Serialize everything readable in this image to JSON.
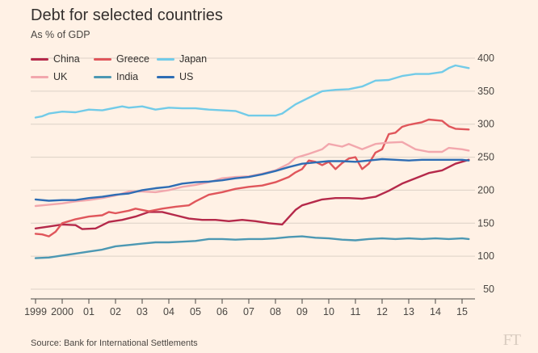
{
  "title": "Debt for selected countries",
  "subtitle": "As % of GDP",
  "source": "Source: Bank for International Settlements",
  "logo_text": "FT",
  "chart_data": {
    "type": "line",
    "title": "Debt for selected countries",
    "subtitle": "As % of GDP",
    "ylim": [
      50,
      400
    ],
    "yticks": [
      50,
      100,
      150,
      200,
      250,
      300,
      350,
      400
    ],
    "xlim": [
      1998.75,
      2015.75
    ],
    "xticks": [
      {
        "x": 1999,
        "label": "1999"
      },
      {
        "x": 2000,
        "label": "2000"
      },
      {
        "x": 2001,
        "label": "01"
      },
      {
        "x": 2002,
        "label": "02"
      },
      {
        "x": 2003,
        "label": "03"
      },
      {
        "x": 2004,
        "label": "04"
      },
      {
        "x": 2005,
        "label": "05"
      },
      {
        "x": 2006,
        "label": "06"
      },
      {
        "x": 2007,
        "label": "07"
      },
      {
        "x": 2008,
        "label": "08"
      },
      {
        "x": 2009,
        "label": "09"
      },
      {
        "x": 2010,
        "label": "10"
      },
      {
        "x": 2011,
        "label": "11"
      },
      {
        "x": 2012,
        "label": "12"
      },
      {
        "x": 2013,
        "label": "13"
      },
      {
        "x": 2014,
        "label": "14"
      },
      {
        "x": 2015,
        "label": "15"
      }
    ],
    "grid": true,
    "legend_position": "top-left",
    "series": [
      {
        "name": "China",
        "color": "#b5294a",
        "points": [
          [
            1999.0,
            142
          ],
          [
            1999.5,
            145
          ],
          [
            2000.0,
            148
          ],
          [
            2000.5,
            147
          ],
          [
            2000.75,
            141
          ],
          [
            2001.25,
            142
          ],
          [
            2001.75,
            152
          ],
          [
            2002.25,
            155
          ],
          [
            2002.75,
            160
          ],
          [
            2003.25,
            167
          ],
          [
            2003.75,
            167
          ],
          [
            2004.25,
            162
          ],
          [
            2004.75,
            157
          ],
          [
            2005.25,
            155
          ],
          [
            2005.75,
            155
          ],
          [
            2006.25,
            153
          ],
          [
            2006.75,
            155
          ],
          [
            2007.25,
            153
          ],
          [
            2007.75,
            150
          ],
          [
            2008.25,
            148
          ],
          [
            2008.75,
            170
          ],
          [
            2009.0,
            177
          ],
          [
            2009.5,
            183
          ],
          [
            2009.75,
            186
          ],
          [
            2010.25,
            188
          ],
          [
            2010.75,
            188
          ],
          [
            2011.25,
            187
          ],
          [
            2011.75,
            190
          ],
          [
            2012.25,
            199
          ],
          [
            2012.75,
            210
          ],
          [
            2013.25,
            218
          ],
          [
            2013.75,
            226
          ],
          [
            2014.25,
            230
          ],
          [
            2014.75,
            240
          ],
          [
            2015.25,
            246
          ]
        ]
      },
      {
        "name": "Greece",
        "color": "#e0565b",
        "points": [
          [
            1999.0,
            134
          ],
          [
            1999.25,
            133
          ],
          [
            1999.5,
            130
          ],
          [
            1999.75,
            137
          ],
          [
            2000.0,
            150
          ],
          [
            2000.5,
            156
          ],
          [
            2001.0,
            160
          ],
          [
            2001.5,
            162
          ],
          [
            2001.75,
            167
          ],
          [
            2002.0,
            165
          ],
          [
            2002.5,
            169
          ],
          [
            2002.75,
            172
          ],
          [
            2003.25,
            168
          ],
          [
            2003.75,
            172
          ],
          [
            2004.25,
            175
          ],
          [
            2004.75,
            177
          ],
          [
            2005.0,
            183
          ],
          [
            2005.5,
            193
          ],
          [
            2006.0,
            197
          ],
          [
            2006.5,
            202
          ],
          [
            2007.0,
            205
          ],
          [
            2007.5,
            207
          ],
          [
            2008.0,
            212
          ],
          [
            2008.5,
            220
          ],
          [
            2008.75,
            227
          ],
          [
            2009.0,
            232
          ],
          [
            2009.25,
            245
          ],
          [
            2009.5,
            243
          ],
          [
            2009.75,
            238
          ],
          [
            2010.0,
            243
          ],
          [
            2010.25,
            232
          ],
          [
            2010.5,
            241
          ],
          [
            2010.75,
            248
          ],
          [
            2011.0,
            250
          ],
          [
            2011.25,
            232
          ],
          [
            2011.5,
            240
          ],
          [
            2011.75,
            257
          ],
          [
            2012.0,
            262
          ],
          [
            2012.25,
            285
          ],
          [
            2012.5,
            287
          ],
          [
            2012.75,
            296
          ],
          [
            2013.0,
            299
          ],
          [
            2013.5,
            303
          ],
          [
            2013.75,
            307
          ],
          [
            2014.25,
            305
          ],
          [
            2014.5,
            297
          ],
          [
            2014.75,
            293
          ],
          [
            2015.25,
            292
          ]
        ]
      },
      {
        "name": "Japan",
        "color": "#72cbe8",
        "points": [
          [
            1999.0,
            310
          ],
          [
            1999.25,
            312
          ],
          [
            1999.5,
            316
          ],
          [
            2000.0,
            319
          ],
          [
            2000.5,
            318
          ],
          [
            2001.0,
            322
          ],
          [
            2001.5,
            321
          ],
          [
            2002.0,
            325
          ],
          [
            2002.25,
            327
          ],
          [
            2002.5,
            325
          ],
          [
            2003.0,
            327
          ],
          [
            2003.5,
            322
          ],
          [
            2004.0,
            325
          ],
          [
            2004.5,
            324
          ],
          [
            2005.0,
            324
          ],
          [
            2005.5,
            322
          ],
          [
            2006.0,
            321
          ],
          [
            2006.5,
            320
          ],
          [
            2007.0,
            313
          ],
          [
            2007.5,
            313
          ],
          [
            2008.0,
            313
          ],
          [
            2008.25,
            316
          ],
          [
            2008.75,
            330
          ],
          [
            2009.25,
            340
          ],
          [
            2009.75,
            350
          ],
          [
            2010.25,
            352
          ],
          [
            2010.75,
            353
          ],
          [
            2011.25,
            357
          ],
          [
            2011.75,
            366
          ],
          [
            2012.25,
            367
          ],
          [
            2012.75,
            373
          ],
          [
            2013.25,
            376
          ],
          [
            2013.75,
            376
          ],
          [
            2014.25,
            379
          ],
          [
            2014.5,
            385
          ],
          [
            2014.75,
            389
          ],
          [
            2015.25,
            385
          ]
        ]
      },
      {
        "name": "UK",
        "color": "#f2a7ad",
        "points": [
          [
            1999.0,
            176
          ],
          [
            1999.5,
            178
          ],
          [
            2000.0,
            180
          ],
          [
            2000.5,
            183
          ],
          [
            2001.0,
            185
          ],
          [
            2001.5,
            188
          ],
          [
            2002.0,
            192
          ],
          [
            2002.5,
            198
          ],
          [
            2003.0,
            198
          ],
          [
            2003.5,
            197
          ],
          [
            2004.0,
            200
          ],
          [
            2004.5,
            205
          ],
          [
            2005.0,
            208
          ],
          [
            2005.5,
            212
          ],
          [
            2006.0,
            218
          ],
          [
            2006.5,
            220
          ],
          [
            2007.0,
            221
          ],
          [
            2007.5,
            225
          ],
          [
            2008.0,
            230
          ],
          [
            2008.5,
            240
          ],
          [
            2008.75,
            249
          ],
          [
            2009.25,
            255
          ],
          [
            2009.75,
            262
          ],
          [
            2010.0,
            270
          ],
          [
            2010.5,
            266
          ],
          [
            2010.75,
            270
          ],
          [
            2011.25,
            262
          ],
          [
            2011.75,
            270
          ],
          [
            2012.25,
            272
          ],
          [
            2012.75,
            273
          ],
          [
            2013.25,
            262
          ],
          [
            2013.75,
            258
          ],
          [
            2014.25,
            258
          ],
          [
            2014.5,
            264
          ],
          [
            2015.0,
            262
          ],
          [
            2015.25,
            260
          ]
        ]
      },
      {
        "name": "India",
        "color": "#4c98b3",
        "points": [
          [
            1999.0,
            97
          ],
          [
            1999.5,
            98
          ],
          [
            2000.0,
            101
          ],
          [
            2000.5,
            104
          ],
          [
            2001.0,
            107
          ],
          [
            2001.5,
            110
          ],
          [
            2002.0,
            115
          ],
          [
            2002.5,
            117
          ],
          [
            2003.0,
            119
          ],
          [
            2003.5,
            121
          ],
          [
            2004.0,
            121
          ],
          [
            2004.5,
            122
          ],
          [
            2005.0,
            123
          ],
          [
            2005.5,
            126
          ],
          [
            2006.0,
            126
          ],
          [
            2006.5,
            125
          ],
          [
            2007.0,
            126
          ],
          [
            2007.5,
            126
          ],
          [
            2008.0,
            127
          ],
          [
            2008.5,
            129
          ],
          [
            2009.0,
            130
          ],
          [
            2009.5,
            128
          ],
          [
            2010.0,
            127
          ],
          [
            2010.5,
            125
          ],
          [
            2011.0,
            124
          ],
          [
            2011.5,
            126
          ],
          [
            2012.0,
            127
          ],
          [
            2012.5,
            126
          ],
          [
            2013.0,
            127
          ],
          [
            2013.5,
            126
          ],
          [
            2014.0,
            127
          ],
          [
            2014.5,
            126
          ],
          [
            2015.0,
            127
          ],
          [
            2015.25,
            126
          ]
        ]
      },
      {
        "name": "US",
        "color": "#2e6db4",
        "points": [
          [
            1999.0,
            186
          ],
          [
            1999.5,
            184
          ],
          [
            2000.0,
            185
          ],
          [
            2000.5,
            185
          ],
          [
            2001.0,
            188
          ],
          [
            2001.5,
            190
          ],
          [
            2002.0,
            193
          ],
          [
            2002.5,
            195
          ],
          [
            2003.0,
            200
          ],
          [
            2003.5,
            203
          ],
          [
            2004.0,
            205
          ],
          [
            2004.5,
            210
          ],
          [
            2005.0,
            212
          ],
          [
            2005.5,
            213
          ],
          [
            2006.0,
            215
          ],
          [
            2006.5,
            218
          ],
          [
            2007.0,
            220
          ],
          [
            2007.5,
            224
          ],
          [
            2008.0,
            229
          ],
          [
            2008.5,
            235
          ],
          [
            2009.0,
            240
          ],
          [
            2009.5,
            242
          ],
          [
            2010.0,
            244
          ],
          [
            2010.5,
            244
          ],
          [
            2011.0,
            243
          ],
          [
            2011.5,
            245
          ],
          [
            2012.0,
            247
          ],
          [
            2012.5,
            246
          ],
          [
            2013.0,
            245
          ],
          [
            2013.5,
            246
          ],
          [
            2014.0,
            246
          ],
          [
            2014.5,
            246
          ],
          [
            2015.0,
            246
          ],
          [
            2015.25,
            245
          ]
        ]
      }
    ]
  }
}
